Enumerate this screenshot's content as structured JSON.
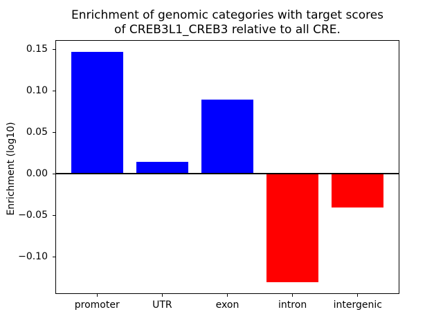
{
  "title": {
    "line1": "Enrichment of genomic categories with target scores",
    "line2": "of CREB3L1_CREB3 relative to all CRE."
  },
  "chart_data": {
    "type": "bar",
    "title": "Enrichment of genomic categories with target scores\nof CREB3L1_CREB3 relative to all CRE.",
    "xlabel": "",
    "ylabel": "Enrichment (log10)",
    "categories": [
      "promoter",
      "UTR",
      "exon",
      "intron",
      "intergenic"
    ],
    "values": [
      0.147,
      0.014,
      0.089,
      -0.131,
      -0.041
    ],
    "bar_colors": [
      "#0000ff",
      "#0000ff",
      "#0000ff",
      "#ff0000",
      "#ff0000"
    ],
    "positive_color": "#0000ff",
    "negative_color": "#ff0000",
    "yticks": [
      0.15,
      0.1,
      0.05,
      0.0,
      -0.05,
      -0.1
    ],
    "ytick_labels": [
      "0.15",
      "0.10",
      "0.05",
      "0.00",
      "−0.05",
      "−0.10"
    ],
    "ylim": [
      -0.145,
      0.161
    ],
    "xlim": [
      -0.64,
      4.64
    ],
    "bar_width": 0.8,
    "zero_line": true,
    "grid": false,
    "legend": false
  }
}
